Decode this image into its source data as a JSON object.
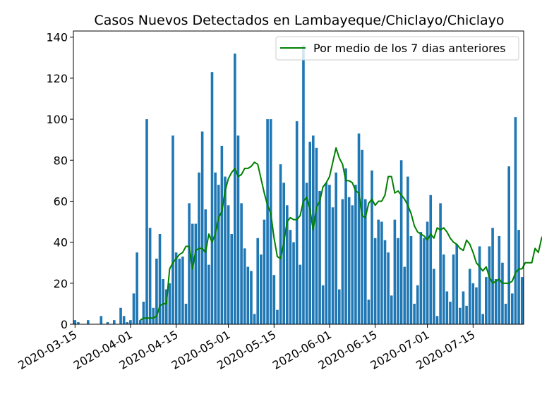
{
  "chart_data": {
    "type": "bar",
    "title": "Casos Nuevos Detectados en Lambayeque/Chiclayo/Chiclayo",
    "xlabel": "",
    "ylabel": "",
    "x_start": "2020-03-15",
    "x_end": "2020-07-30",
    "ylim": [
      0,
      143
    ],
    "y_ticks": [
      0,
      20,
      40,
      60,
      80,
      100,
      120,
      140
    ],
    "x_ticks": [
      "2020-03-15",
      "2020-04-01",
      "2020-04-15",
      "2020-05-01",
      "2020-05-15",
      "2020-06-01",
      "2020-06-15",
      "2020-07-01",
      "2020-07-15"
    ],
    "grid": false,
    "legend_position": "top-right",
    "bar_color": "#1f77b4",
    "line_color": "#008000",
    "series": [
      {
        "type": "bar",
        "values": [
          2,
          1,
          0,
          0,
          2,
          0,
          0,
          0,
          4,
          0,
          1,
          0,
          2,
          0,
          8,
          4,
          1,
          2,
          15,
          35,
          2,
          11,
          100,
          47,
          8,
          32,
          44,
          22,
          17,
          20,
          92,
          35,
          32,
          33,
          10,
          59,
          49,
          49,
          74,
          94,
          56,
          29,
          123,
          74,
          68,
          87,
          72,
          58,
          44,
          132,
          92,
          59,
          37,
          28,
          26,
          5,
          42,
          34,
          51,
          100,
          100,
          24,
          7,
          78,
          69,
          58,
          46,
          40,
          99,
          29,
          136,
          69,
          89,
          92,
          86,
          65,
          19,
          69,
          68,
          57,
          74,
          17,
          61,
          76,
          62,
          58,
          68,
          93,
          85,
          61,
          12,
          75,
          42,
          51,
          50,
          41,
          35,
          14,
          51,
          42,
          80,
          28,
          72,
          43,
          10,
          19,
          45,
          42,
          50,
          63,
          27,
          4,
          59,
          34,
          16,
          11,
          34,
          39,
          8,
          16,
          9,
          27,
          20,
          18,
          38,
          5,
          23,
          38,
          47,
          22,
          43,
          30,
          10,
          77,
          15,
          101,
          46,
          23
        ]
      },
      {
        "type": "line",
        "name": "Por medio de los 7 dias anteriores",
        "start_offset": 20,
        "values": [
          2,
          3,
          3,
          3,
          3,
          4,
          9,
          10,
          10,
          27,
          30,
          32,
          34,
          35,
          38,
          38,
          27,
          36,
          37,
          37,
          35,
          44,
          40,
          44,
          52,
          55,
          65,
          71,
          74,
          76,
          72,
          73,
          76,
          76,
          77,
          79,
          78,
          71,
          64,
          58,
          54,
          42,
          33,
          32,
          40,
          50,
          52,
          51,
          51,
          53,
          60,
          62,
          56,
          46,
          57,
          60,
          67,
          69,
          72,
          79,
          86,
          81,
          78,
          70,
          70,
          69,
          65,
          64,
          53,
          52,
          59,
          61,
          58,
          60,
          60,
          63,
          72,
          72,
          64,
          65,
          63,
          61,
          58,
          54,
          48,
          45,
          44,
          43,
          41,
          44,
          42,
          47,
          46,
          47,
          45,
          42,
          40,
          39,
          37,
          36,
          41,
          39,
          35,
          30,
          28,
          26,
          28,
          23,
          20,
          21,
          22,
          20,
          20,
          20,
          21,
          25,
          27,
          27,
          30,
          30,
          30,
          37,
          35,
          42,
          45,
          43
        ]
      }
    ]
  }
}
